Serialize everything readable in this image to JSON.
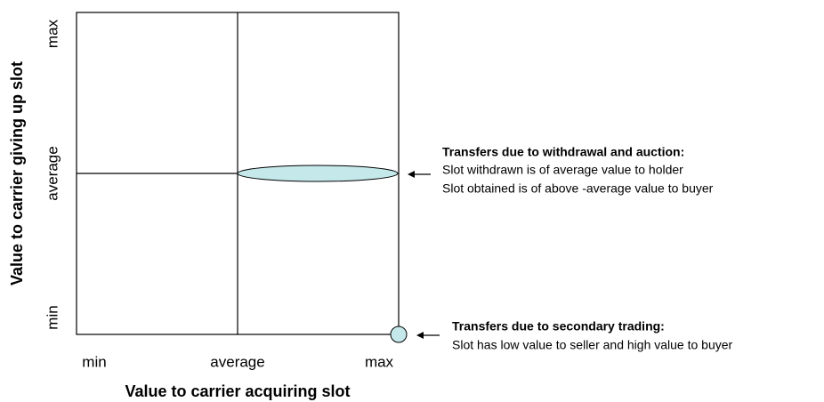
{
  "axes": {
    "y_label": "Value to carrier giving up slot",
    "x_label": "Value to carrier acquiring slot",
    "y_ticks": [
      "min",
      "average",
      "max"
    ],
    "x_ticks": [
      "min",
      "average",
      "max"
    ]
  },
  "annotations": [
    {
      "title": "Transfers due to withdrawal and auction:",
      "lines": [
        "Slot withdrawn is of average value to holder",
        "Slot obtained is of above -average value to buyer"
      ]
    },
    {
      "title": "Transfers due to secondary trading:",
      "lines": [
        "Slot has low value to seller and high value to buyer"
      ]
    }
  ]
}
